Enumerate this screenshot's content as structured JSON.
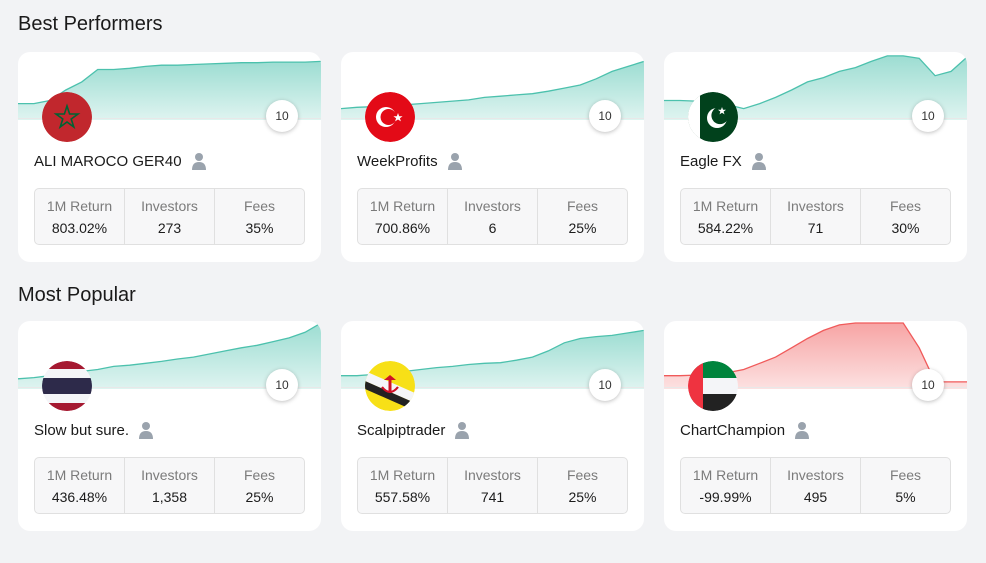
{
  "sections": [
    {
      "title": "Best Performers",
      "cards": [
        {
          "name": "ALI MAROCO GER40",
          "flag": "morocco",
          "risk_score": "10",
          "stats": [
            {
              "label": "1M Return",
              "value": "803.02%"
            },
            {
              "label": "Investors",
              "value": "273"
            },
            {
              "label": "Fees",
              "value": "35%"
            }
          ],
          "chart": {
            "color": "#4cc1ad",
            "trend": "up",
            "points": [
              0.2,
              0.2,
              0.25,
              0.42,
              0.55,
              0.75,
              0.75,
              0.77,
              0.8,
              0.82,
              0.82,
              0.83,
              0.84,
              0.85,
              0.86,
              0.86,
              0.87,
              0.87,
              0.87,
              0.88
            ]
          }
        },
        {
          "name": "WeekProfits",
          "flag": "turkey",
          "risk_score": "10",
          "stats": [
            {
              "label": "1M Return",
              "value": "700.86%"
            },
            {
              "label": "Investors",
              "value": "6"
            },
            {
              "label": "Fees",
              "value": "25%"
            }
          ],
          "chart": {
            "color": "#4cc1ad",
            "trend": "up",
            "points": [
              0.12,
              0.14,
              0.15,
              0.17,
              0.18,
              0.2,
              0.22,
              0.24,
              0.26,
              0.3,
              0.32,
              0.34,
              0.36,
              0.4,
              0.45,
              0.5,
              0.6,
              0.72,
              0.8,
              0.88
            ]
          }
        },
        {
          "name": "Eagle FX",
          "flag": "pakistan",
          "risk_score": "10",
          "stats": [
            {
              "label": "1M Return",
              "value": "584.22%"
            },
            {
              "label": "Investors",
              "value": "71"
            },
            {
              "label": "Fees",
              "value": "30%"
            }
          ],
          "chart": {
            "color": "#4cc1ad",
            "trend": "up",
            "points": [
              0.25,
              0.25,
              0.24,
              0.22,
              0.18,
              0.12,
              0.2,
              0.3,
              0.42,
              0.55,
              0.62,
              0.72,
              0.78,
              0.88,
              0.97,
              0.97,
              0.93,
              0.65,
              0.72,
              0.95
            ]
          }
        }
      ]
    },
    {
      "title": "Most Popular",
      "cards": [
        {
          "name": "Slow but sure.",
          "flag": "thailand",
          "risk_score": "10",
          "stats": [
            {
              "label": "1M Return",
              "value": "436.48%"
            },
            {
              "label": "Investors",
              "value": "1,358"
            },
            {
              "label": "Fees",
              "value": "25%"
            }
          ],
          "chart": {
            "color": "#4cc1ad",
            "trend": "up",
            "points": [
              0.1,
              0.12,
              0.15,
              0.18,
              0.22,
              0.25,
              0.3,
              0.32,
              0.35,
              0.38,
              0.42,
              0.45,
              0.5,
              0.55,
              0.6,
              0.64,
              0.7,
              0.76,
              0.85,
              1.0
            ]
          }
        },
        {
          "name": "Scalpiptrader",
          "flag": "brunei",
          "risk_score": "10",
          "stats": [
            {
              "label": "1M Return",
              "value": "557.58%"
            },
            {
              "label": "Investors",
              "value": "741"
            },
            {
              "label": "Fees",
              "value": "25%"
            }
          ],
          "chart": {
            "color": "#4cc1ad",
            "trend": "up",
            "points": [
              0.15,
              0.15,
              0.17,
              0.2,
              0.22,
              0.25,
              0.28,
              0.3,
              0.33,
              0.35,
              0.36,
              0.4,
              0.45,
              0.55,
              0.68,
              0.75,
              0.78,
              0.8,
              0.84,
              0.88
            ]
          }
        },
        {
          "name": "ChartChampion",
          "flag": "uae",
          "risk_score": "10",
          "stats": [
            {
              "label": "1M Return",
              "value": "-99.99%"
            },
            {
              "label": "Investors",
              "value": "495"
            },
            {
              "label": "Fees",
              "value": "5%"
            }
          ],
          "chart": {
            "color": "#f05a5a",
            "trend": "down",
            "points": [
              0.15,
              0.15,
              0.16,
              0.18,
              0.2,
              0.25,
              0.35,
              0.45,
              0.6,
              0.75,
              0.88,
              0.97,
              1.0,
              1.0,
              1.0,
              1.0,
              0.6,
              0.05,
              0.05,
              0.05
            ]
          }
        }
      ]
    }
  ]
}
